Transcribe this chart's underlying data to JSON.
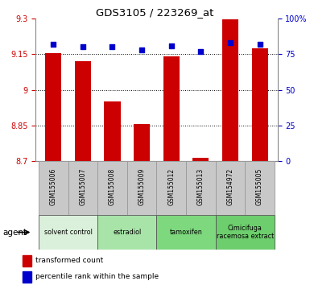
{
  "title": "GDS3105 / 223269_at",
  "samples": [
    "GSM155006",
    "GSM155007",
    "GSM155008",
    "GSM155009",
    "GSM155012",
    "GSM155013",
    "GSM154972",
    "GSM155005"
  ],
  "red_values": [
    9.155,
    9.12,
    8.95,
    8.855,
    9.14,
    8.715,
    9.295,
    9.175
  ],
  "blue_values": [
    82,
    80,
    80,
    78,
    81,
    77,
    83,
    82
  ],
  "ylim_left": [
    8.7,
    9.3
  ],
  "yticks_left": [
    8.7,
    8.85,
    9.0,
    9.15,
    9.3
  ],
  "ytick_labels_left": [
    "8.7",
    "8.85",
    "9",
    "9.15",
    "9.3"
  ],
  "ylim_right": [
    0,
    100
  ],
  "yticks_right": [
    0,
    25,
    50,
    75,
    100
  ],
  "ytick_labels_right": [
    "0",
    "25",
    "50",
    "75",
    "100%"
  ],
  "bar_bottom": 8.7,
  "bar_color": "#cc0000",
  "dot_color": "#0000cc",
  "groups": [
    {
      "label": "solvent control",
      "start": 0,
      "end": 2,
      "color": "#daf0da"
    },
    {
      "label": "estradiol",
      "start": 2,
      "end": 4,
      "color": "#a8e4a8"
    },
    {
      "label": "tamoxifen",
      "start": 4,
      "end": 6,
      "color": "#7ed87e"
    },
    {
      "label": "Cimicifuga\nracemosa extract",
      "start": 6,
      "end": 8,
      "color": "#6dce6d"
    }
  ],
  "legend_red": "transformed count",
  "legend_blue": "percentile rank within the sample",
  "tick_color_left": "#cc0000",
  "tick_color_right": "#0000cc",
  "sample_box_color": "#c8c8c8",
  "bar_width": 0.55
}
